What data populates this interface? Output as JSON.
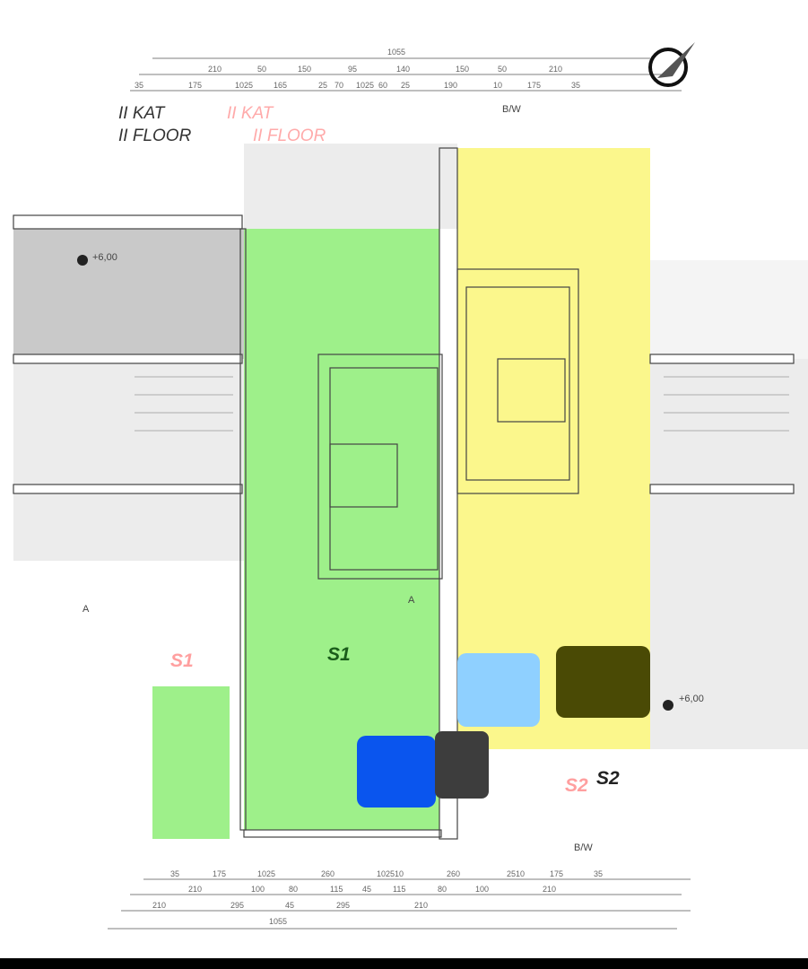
{
  "plan": {
    "title_local": "II KAT",
    "title_local_en": "II FLOOR",
    "title_overlay": "II KAT",
    "title_overlay_en": "II FLOOR",
    "units": [
      {
        "label": "S1",
        "color": "#9ef08a",
        "label_color_main": "#1a5c1a",
        "label_color_alt": "#ff9f9f"
      },
      {
        "label": "S2",
        "color": "#fbf78c",
        "label_color_main": "#222222",
        "label_color_alt": "#ff9f9f"
      }
    ],
    "section_marks": {
      "bw_top": "B/W",
      "bw_bottom": "B/W",
      "a_left": "A",
      "a_right": "A"
    },
    "levels": {
      "left": "+6,00",
      "right": "+6,00"
    },
    "colors": {
      "pool": "#8fd0ff",
      "pool_deep": "#0a55ee",
      "roof_dark": "#4a4a05",
      "gray": "#c9c9c9",
      "light_gray": "#ececec"
    }
  },
  "dimensions": {
    "top_total": "1055",
    "top_row2": [
      "210",
      "50",
      "150",
      "95",
      "140",
      "150",
      "50",
      "210"
    ],
    "top_row3": [
      "35",
      "175",
      "1025",
      "165",
      "25",
      "70",
      "1025",
      "60",
      "25",
      "190",
      "10",
      "175",
      "35"
    ],
    "bottom_row1": [
      "35",
      "175",
      "1025",
      "260",
      "102510",
      "260",
      "2510",
      "175",
      "35"
    ],
    "bottom_row2": [
      "210",
      "100",
      "80",
      "115",
      "45",
      "115",
      "80",
      "100",
      "210"
    ],
    "bottom_row3": [
      "210",
      "295",
      "45",
      "295",
      "210"
    ],
    "bottom_total": "1055"
  }
}
